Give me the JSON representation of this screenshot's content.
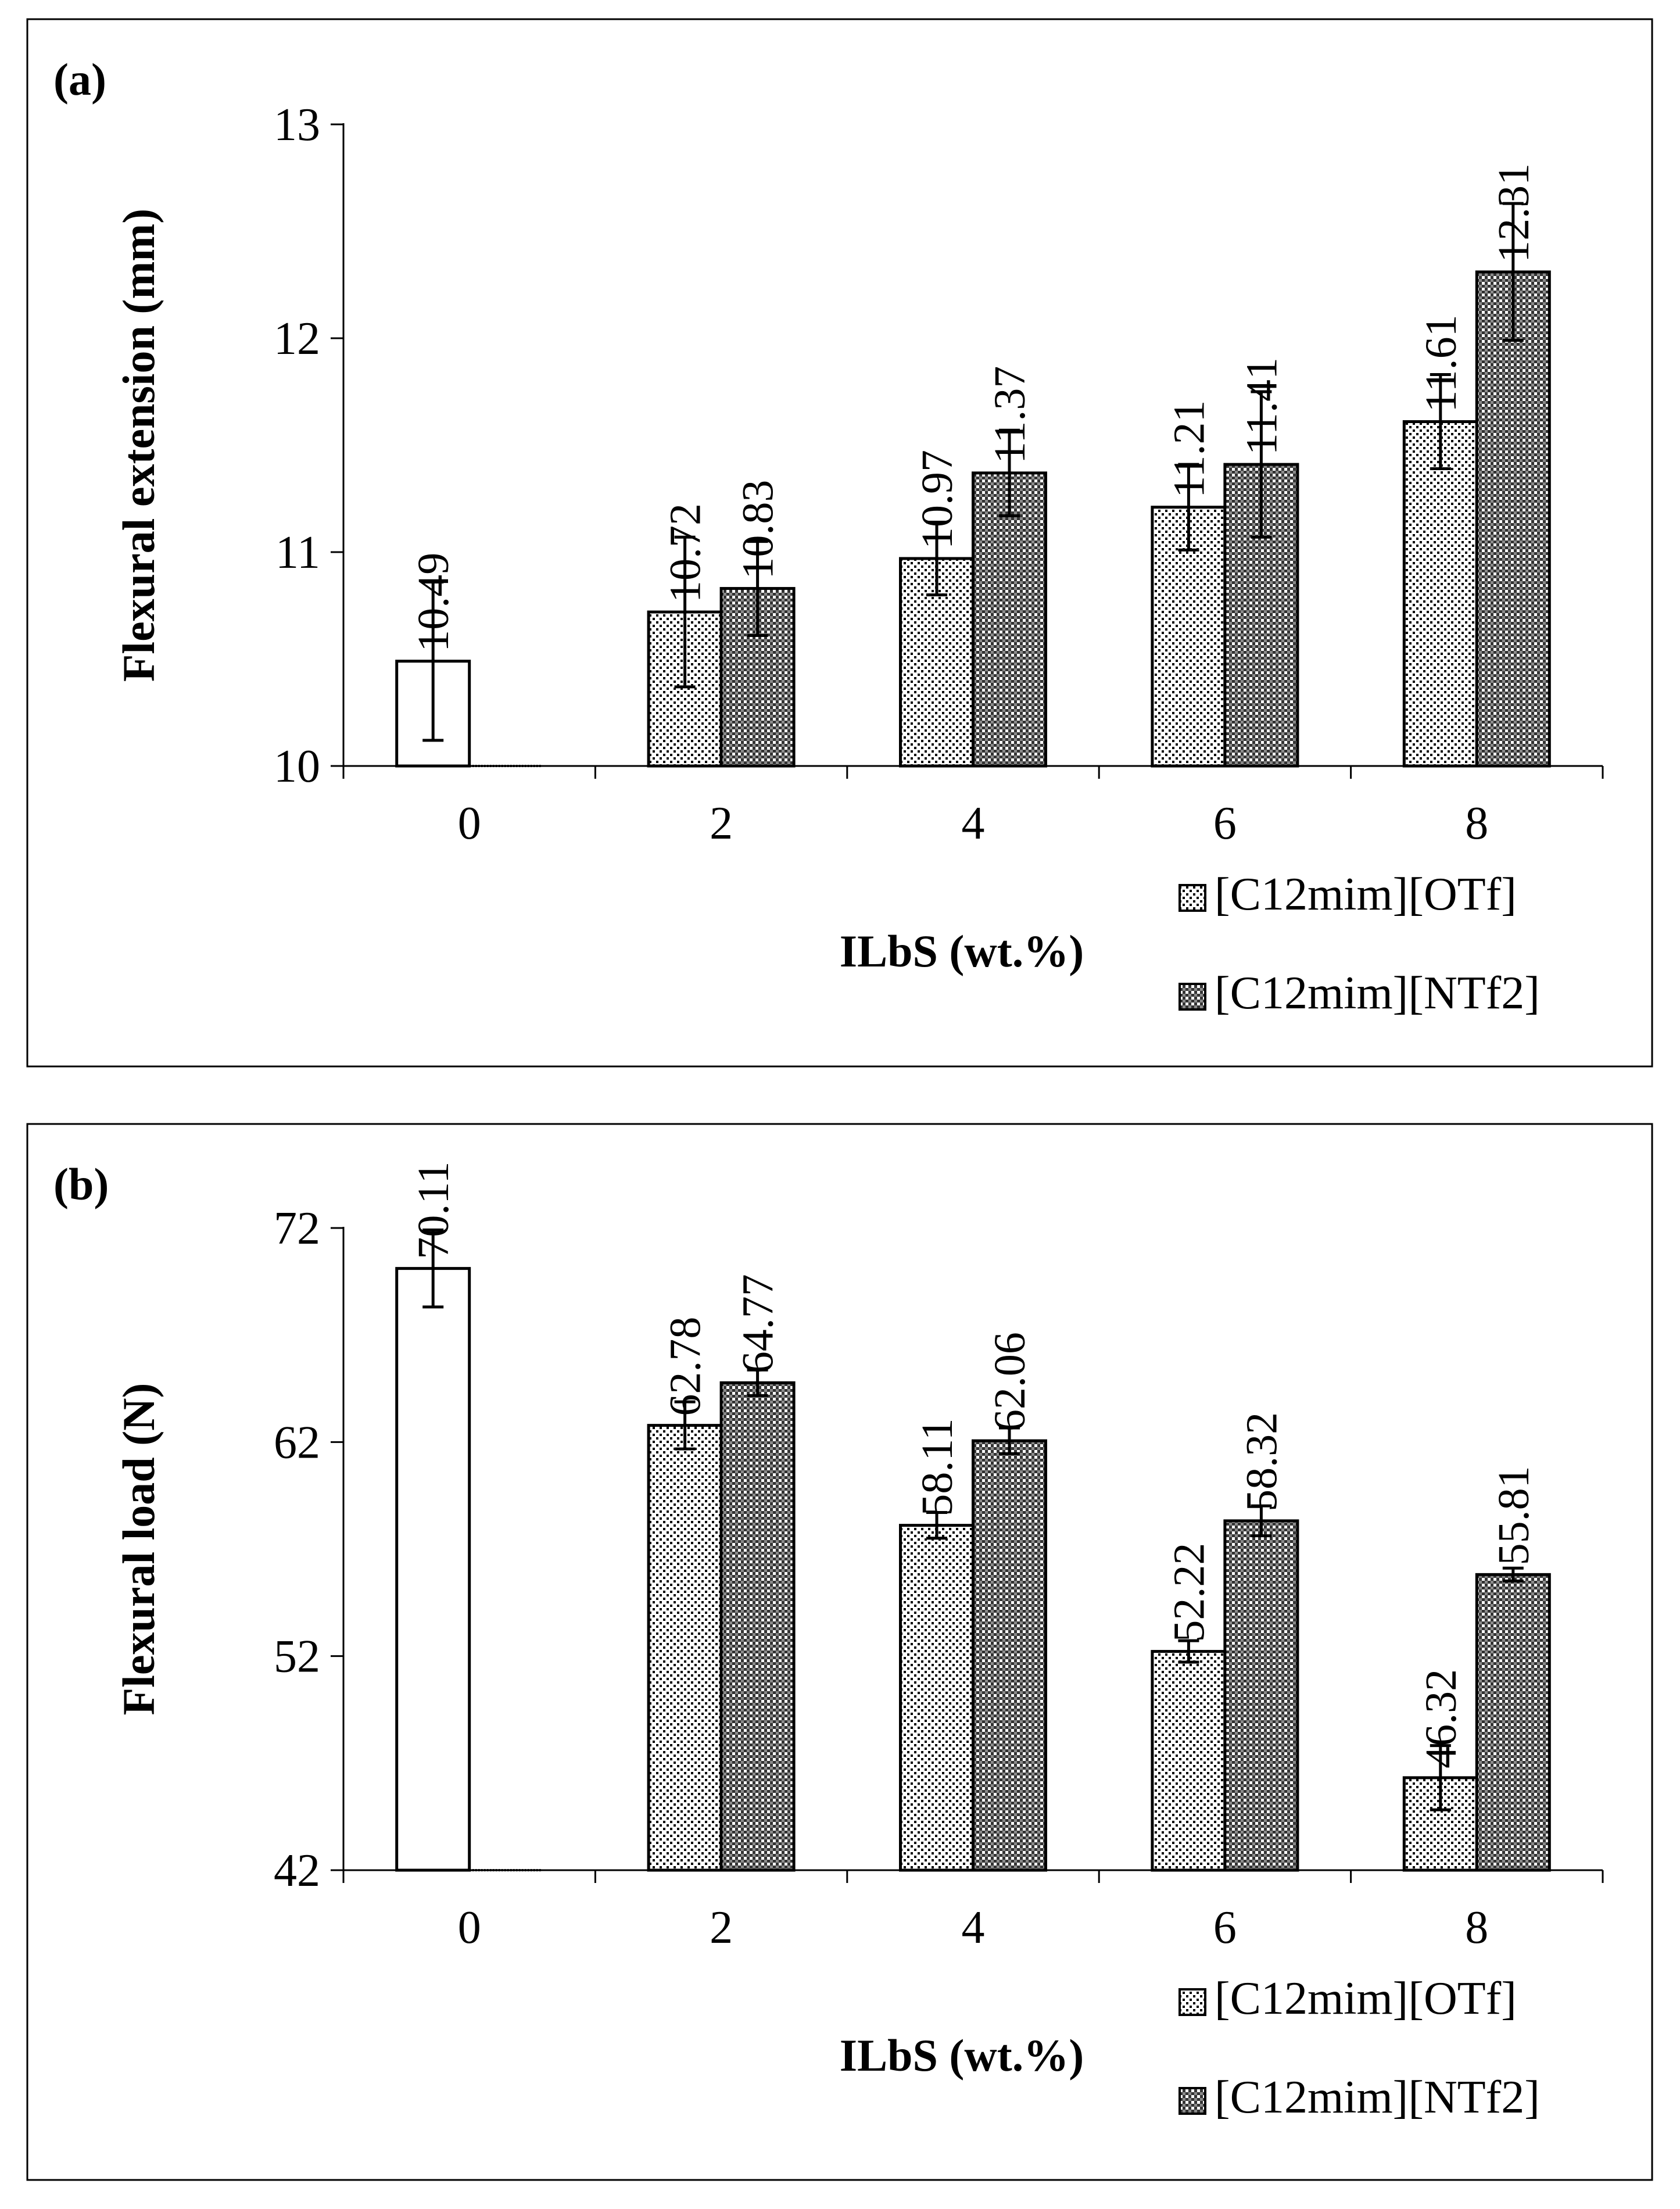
{
  "chart_data": [
    {
      "type": "bar",
      "panel_label": "(a)",
      "title": "",
      "xlabel": "ILbS (wt.%)",
      "ylabel": "Flexural extension (mm)",
      "ylim": [
        10,
        13
      ],
      "yticks": [
        "10",
        "11",
        "12",
        "13"
      ],
      "categories": [
        "0",
        "2",
        "4",
        "6",
        "8"
      ],
      "series": [
        {
          "name": "[C12mim][OTf]",
          "values": [
            10.49,
            10.72,
            10.97,
            11.21,
            11.61
          ],
          "labels": [
            "10.49",
            "10.72",
            "10.97",
            "11.21",
            "11.61"
          ],
          "errors": [
            0.37,
            0.35,
            0.17,
            0.2,
            0.22
          ],
          "fill": "dots"
        },
        {
          "name": "[C12mim][NTf2]",
          "values": [
            null,
            10.83,
            11.37,
            11.41,
            12.31
          ],
          "labels": [
            null,
            "10.83",
            "11.37",
            "11.41",
            "12.31"
          ],
          "errors": [
            null,
            0.22,
            0.2,
            0.34,
            0.32
          ],
          "fill": "checker"
        }
      ],
      "control_bar": {
        "category": "0",
        "fill": "white"
      },
      "grid": false,
      "legend_position": "bottom-right"
    },
    {
      "type": "bar",
      "panel_label": "(b)",
      "title": "",
      "xlabel": "ILbS (wt.%)",
      "ylabel": "Flexural load (N)",
      "ylim": [
        42,
        72
      ],
      "yticks": [
        "42",
        "52",
        "62",
        "72"
      ],
      "categories": [
        "0",
        "2",
        "4",
        "6",
        "8"
      ],
      "series": [
        {
          "name": "[C12mim][OTf]",
          "values": [
            70.11,
            62.78,
            58.11,
            52.22,
            46.32
          ],
          "labels": [
            "70.11",
            "62.78",
            "58.11",
            "52.22",
            "46.32"
          ],
          "errors": [
            1.8,
            1.1,
            0.6,
            0.5,
            1.5
          ],
          "fill": "dots"
        },
        {
          "name": "[C12mim][NTf2]",
          "values": [
            null,
            64.77,
            62.06,
            58.32,
            55.81
          ],
          "labels": [
            null,
            "64.77",
            "62.06",
            "58.32",
            "55.81"
          ],
          "errors": [
            null,
            0.6,
            0.6,
            0.7,
            0.3
          ],
          "fill": "checker"
        }
      ],
      "control_bar": {
        "category": "0",
        "fill": "white"
      },
      "grid": false,
      "legend_position": "bottom-right"
    }
  ],
  "colors": {
    "stroke": "#000000",
    "background": "#ffffff",
    "checker_dark": "#3a3a3a",
    "dot": "#000000"
  }
}
